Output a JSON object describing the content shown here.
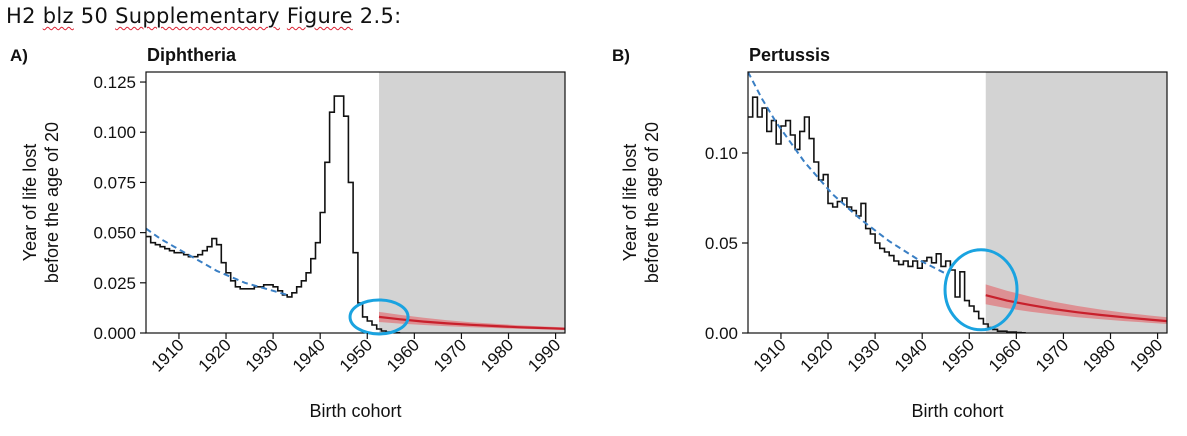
{
  "document": {
    "title_parts": [
      "H2 ",
      "blz",
      " 50 ",
      "Supplementary",
      " ",
      "Figure",
      " 2.5:"
    ]
  },
  "colors": {
    "observed": "#111111",
    "fit": "#3a7fc4",
    "projection": "#c8202c",
    "projection_band": "#e07a7e",
    "shading": "#d3d3d3",
    "highlight_circle": "#1aa3e0"
  },
  "chart_data": [
    {
      "type": "line",
      "panel_label": "A)",
      "title": "Diphtheria",
      "xlabel": "Birth cohort",
      "ylabel": [
        "Year of life lost",
        "before the age of 20"
      ],
      "xlim": [
        1903,
        1992
      ],
      "ylim": [
        0,
        0.13
      ],
      "x_ticks": [
        1910,
        1920,
        1930,
        1940,
        1950,
        1960,
        1970,
        1980,
        1990
      ],
      "x_tick_labels": [
        "1910",
        "1920",
        "1930",
        "1940",
        "1950",
        "1960",
        "1970",
        "1980",
        "1990"
      ],
      "y_ticks": [
        0,
        0.025,
        0.05,
        0.075,
        0.1,
        0.125
      ],
      "y_tick_labels": [
        "0.000",
        "0.025",
        "0.050",
        "0.075",
        "0.100",
        "0.125"
      ],
      "shaded_region": [
        1952.5,
        1992
      ],
      "highlight_circle": {
        "x": 1952.5,
        "y": 0.008
      },
      "series": [
        {
          "role": "observed",
          "style": "step",
          "x": [
            1903,
            1904,
            1905,
            1906,
            1907,
            1908,
            1909,
            1910,
            1911,
            1912,
            1913,
            1914,
            1915,
            1916,
            1917,
            1918,
            1919,
            1920,
            1921,
            1922,
            1923,
            1924,
            1925,
            1926,
            1927,
            1928,
            1929,
            1930,
            1931,
            1932,
            1933,
            1934,
            1935,
            1936,
            1937,
            1938,
            1939,
            1940,
            1941,
            1942,
            1943,
            1944,
            1945,
            1946,
            1947,
            1948,
            1949,
            1950,
            1951,
            1952,
            1953,
            1954,
            1955,
            1956
          ],
          "y": [
            0.048,
            0.045,
            0.044,
            0.043,
            0.042,
            0.041,
            0.04,
            0.04,
            0.039,
            0.038,
            0.038,
            0.039,
            0.041,
            0.043,
            0.047,
            0.044,
            0.035,
            0.03,
            0.026,
            0.023,
            0.022,
            0.022,
            0.022,
            0.023,
            0.023,
            0.024,
            0.024,
            0.023,
            0.021,
            0.019,
            0.018,
            0.02,
            0.023,
            0.026,
            0.03,
            0.037,
            0.045,
            0.06,
            0.085,
            0.11,
            0.118,
            0.118,
            0.108,
            0.075,
            0.04,
            0.015,
            0.008,
            0.006,
            0.004,
            0.002,
            0.001,
            0.0005,
            0.0002,
            0.0001
          ]
        },
        {
          "role": "fit",
          "style": "dashed",
          "x": [
            1903,
            1906,
            1909,
            1912,
            1915,
            1918,
            1921,
            1924,
            1927,
            1930,
            1933
          ],
          "y": [
            0.052,
            0.047,
            0.043,
            0.039,
            0.035,
            0.031,
            0.028,
            0.025,
            0.023,
            0.021,
            0.019
          ]
        },
        {
          "role": "projection",
          "style": "line",
          "x": [
            1952.5,
            1957,
            1962,
            1967,
            1972,
            1977,
            1982,
            1987,
            1992
          ],
          "y": [
            0.008,
            0.0068,
            0.0057,
            0.0048,
            0.0041,
            0.0035,
            0.0029,
            0.0025,
            0.0021
          ],
          "lower": [
            0.0055,
            0.0047,
            0.004,
            0.0034,
            0.0029,
            0.0025,
            0.0021,
            0.0018,
            0.0015
          ],
          "upper": [
            0.0105,
            0.009,
            0.0076,
            0.0064,
            0.0054,
            0.0046,
            0.0039,
            0.0033,
            0.0028
          ]
        }
      ]
    },
    {
      "type": "line",
      "panel_label": "B)",
      "title": "Pertussis",
      "xlabel": "Birth cohort",
      "ylabel": [
        "Year of life lost",
        "before the age of 20"
      ],
      "xlim": [
        1903,
        1992
      ],
      "ylim": [
        0,
        0.145
      ],
      "x_ticks": [
        1910,
        1920,
        1930,
        1940,
        1950,
        1960,
        1970,
        1980,
        1990
      ],
      "x_tick_labels": [
        "1910",
        "1920",
        "1930",
        "1940",
        "1950",
        "1960",
        "1970",
        "1980",
        "1990"
      ],
      "y_ticks": [
        0,
        0.05,
        0.1
      ],
      "y_tick_labels": [
        "0.00",
        "0.05",
        "0.10"
      ],
      "shaded_region": [
        1953.5,
        1992
      ],
      "highlight_circle": {
        "x": 1952.5,
        "y": 0.024
      },
      "series": [
        {
          "role": "observed",
          "style": "step",
          "x": [
            1903,
            1904,
            1905,
            1906,
            1907,
            1908,
            1909,
            1910,
            1911,
            1912,
            1913,
            1914,
            1915,
            1916,
            1917,
            1918,
            1919,
            1920,
            1921,
            1922,
            1923,
            1924,
            1925,
            1926,
            1927,
            1928,
            1929,
            1930,
            1931,
            1932,
            1933,
            1934,
            1935,
            1936,
            1937,
            1938,
            1939,
            1940,
            1941,
            1942,
            1943,
            1944,
            1945,
            1946,
            1947,
            1948,
            1949,
            1950,
            1951,
            1952,
            1953,
            1954,
            1955,
            1956,
            1957,
            1958,
            1959,
            1960,
            1961
          ],
          "y": [
            0.12,
            0.131,
            0.12,
            0.125,
            0.112,
            0.118,
            0.105,
            0.115,
            0.118,
            0.11,
            0.102,
            0.112,
            0.12,
            0.108,
            0.095,
            0.085,
            0.088,
            0.072,
            0.07,
            0.073,
            0.075,
            0.07,
            0.068,
            0.065,
            0.072,
            0.058,
            0.055,
            0.05,
            0.047,
            0.045,
            0.043,
            0.04,
            0.038,
            0.04,
            0.037,
            0.04,
            0.036,
            0.04,
            0.042,
            0.039,
            0.044,
            0.037,
            0.04,
            0.035,
            0.02,
            0.034,
            0.018,
            0.015,
            0.012,
            0.008,
            0.005,
            0.003,
            0.002,
            0.001,
            0.001,
            0.0005,
            0.0005,
            0.0002,
            0.0001
          ]
        },
        {
          "role": "fit",
          "style": "dashed",
          "x": [
            1903,
            1906,
            1909,
            1912,
            1915,
            1918,
            1921,
            1924,
            1927,
            1930,
            1933,
            1936,
            1939,
            1942,
            1945
          ],
          "y": [
            0.145,
            0.13,
            0.117,
            0.106,
            0.095,
            0.086,
            0.077,
            0.07,
            0.063,
            0.057,
            0.051,
            0.046,
            0.041,
            0.037,
            0.033
          ]
        },
        {
          "role": "projection",
          "style": "line",
          "x": [
            1953.5,
            1958,
            1963,
            1968,
            1973,
            1978,
            1983,
            1988,
            1992
          ],
          "y": [
            0.021,
            0.018,
            0.0155,
            0.0133,
            0.0115,
            0.01,
            0.0087,
            0.0075,
            0.0066
          ],
          "lower": [
            0.016,
            0.0138,
            0.0118,
            0.0102,
            0.0088,
            0.0076,
            0.0066,
            0.0057,
            0.005
          ],
          "upper": [
            0.027,
            0.0235,
            0.0202,
            0.0174,
            0.015,
            0.013,
            0.0113,
            0.0098,
            0.0087
          ]
        }
      ]
    }
  ]
}
